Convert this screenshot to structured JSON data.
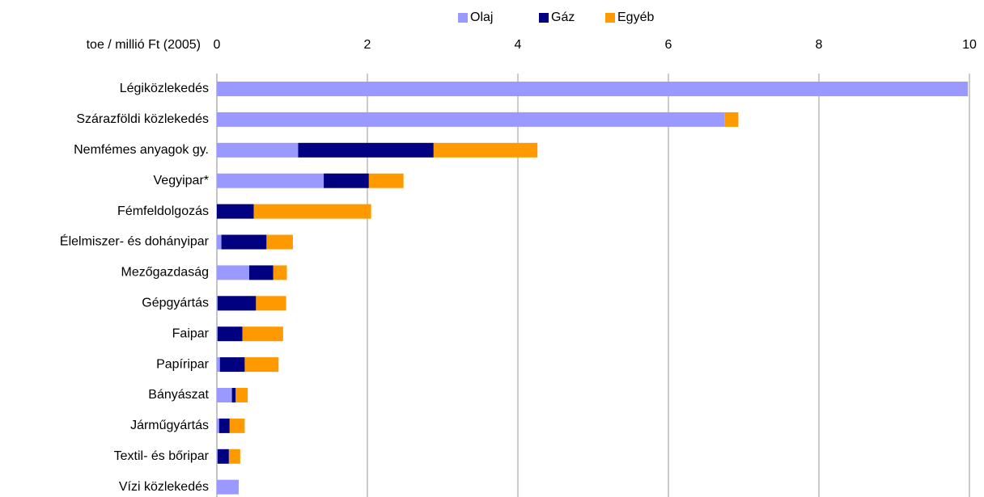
{
  "chart_data": {
    "type": "stacked_bar_horizontal",
    "axis_label": "toe / millió Ft (2005)",
    "categories": [
      "Légiközlekedés",
      "Szárazföldi közlekedés",
      "Nemfémes anyagok gy.",
      "Vegyipar*",
      "Fémfeldolgozás",
      "Élelmiszer- és dohányipar",
      "Mezőgazdaság",
      "Gépgyártás",
      "Faipar",
      "Papíripar",
      "Bányászat",
      "Járműgyártás",
      "Textil- és bőripar",
      "Vízi közlekedés"
    ],
    "series": [
      {
        "name": "Olaj",
        "color": "#9999ff",
        "values": [
          9.98,
          6.75,
          1.08,
          1.42,
          0,
          0.06,
          0.43,
          0.01,
          0.01,
          0.04,
          0.2,
          0.03,
          0.01,
          0.29
        ]
      },
      {
        "name": "Gáz",
        "color": "#000080",
        "values": [
          0,
          0,
          1.8,
          0.6,
          0.49,
          0.6,
          0.32,
          0.51,
          0.33,
          0.33,
          0.05,
          0.14,
          0.15,
          0
        ]
      },
      {
        "name": "Egyéb",
        "color": "#ff9900",
        "values": [
          0,
          0.18,
          1.38,
          0.46,
          1.56,
          0.35,
          0.18,
          0.4,
          0.54,
          0.45,
          0.16,
          0.2,
          0.15,
          0
        ]
      }
    ],
    "xlim": [
      0,
      10
    ],
    "xticks": [
      0,
      2,
      4,
      6,
      8,
      10
    ],
    "grid": true,
    "legend": "top"
  }
}
